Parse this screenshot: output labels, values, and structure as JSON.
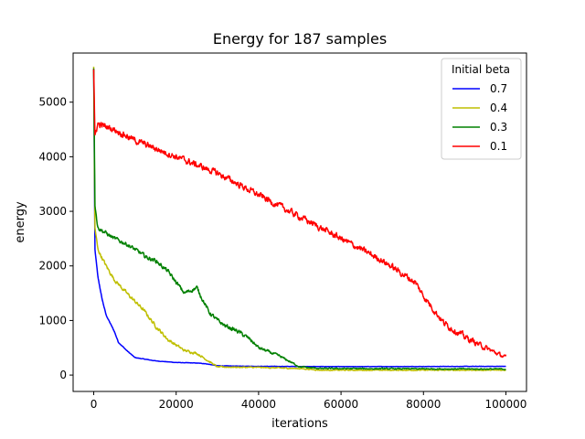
{
  "chart_data": {
    "type": "line",
    "title": "Energy for 187 samples",
    "xlabel": "iterations",
    "ylabel": "energy",
    "xlim": [
      -5000,
      105000
    ],
    "ylim": [
      -300,
      5900
    ],
    "x_ticks": [
      0,
      20000,
      40000,
      60000,
      80000,
      100000
    ],
    "x_tick_labels": [
      "0",
      "20000",
      "40000",
      "60000",
      "80000",
      "100000"
    ],
    "y_ticks": [
      0,
      1000,
      2000,
      3000,
      4000,
      5000
    ],
    "y_tick_labels": [
      "0",
      "1000",
      "2000",
      "3000",
      "4000",
      "5000"
    ],
    "grid": false,
    "legend": {
      "title": "Initial beta",
      "placement": "top-right"
    },
    "series": [
      {
        "name": "0.7",
        "color": "#0000ff",
        "noise": 15,
        "x": [
          0,
          300,
          1000,
          2000,
          3000,
          5000,
          6000,
          8000,
          10000,
          15000,
          20000,
          25000,
          27000,
          30000,
          40000,
          60000,
          100000
        ],
        "y": [
          5600,
          2300,
          1800,
          1400,
          1100,
          800,
          600,
          450,
          320,
          260,
          230,
          220,
          210,
          170,
          160,
          155,
          160
        ]
      },
      {
        "name": "0.4",
        "color": "#bfbf00",
        "noise": 60,
        "x": [
          0,
          300,
          1000,
          3000,
          5000,
          8000,
          10000,
          12000,
          15000,
          18000,
          20000,
          22000,
          25000,
          28000,
          30000,
          40000,
          50000,
          55000,
          100000
        ],
        "y": [
          5650,
          2700,
          2300,
          2000,
          1750,
          1500,
          1350,
          1200,
          900,
          650,
          550,
          450,
          400,
          250,
          150,
          140,
          120,
          90,
          90
        ]
      },
      {
        "name": "0.3",
        "color": "#008000",
        "noise": 70,
        "x": [
          0,
          300,
          1000,
          3000,
          5000,
          8000,
          10000,
          13000,
          15000,
          18000,
          20000,
          22000,
          25000,
          28000,
          30000,
          32000,
          35000,
          38000,
          40000,
          45000,
          50000,
          55000,
          100000
        ],
        "y": [
          5620,
          3100,
          2700,
          2600,
          2500,
          2400,
          2300,
          2150,
          2100,
          1900,
          1700,
          1500,
          1600,
          1150,
          1000,
          900,
          800,
          650,
          500,
          350,
          150,
          120,
          110
        ]
      },
      {
        "name": "0.1",
        "color": "#ff0000",
        "noise": 110,
        "x": [
          0,
          300,
          1000,
          5000,
          10000,
          20000,
          30000,
          40000,
          50000,
          60000,
          70000,
          78000,
          80000,
          85000,
          90000,
          95000,
          100000
        ],
        "y": [
          5600,
          4400,
          4600,
          4500,
          4300,
          4000,
          3700,
          3300,
          2900,
          2500,
          2100,
          1700,
          1450,
          950,
          700,
          500,
          320
        ]
      }
    ]
  }
}
